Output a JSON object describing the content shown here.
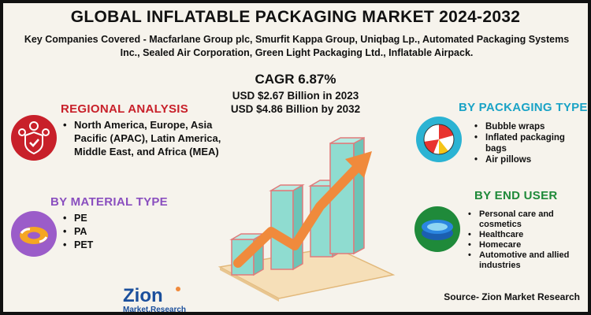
{
  "title": "GLOBAL INFLATABLE PACKAGING MARKET 2024-2032",
  "companies": "Key Companies Covered - Macfarlane Group plc, Smurfit Kappa Group, Uniqbag Lp., Automated Packaging Systems Inc., Sealed Air Corporation, Green Light Packaging Ltd., Inflatable Airpack.",
  "cagr": "CAGR 6.87%",
  "market": {
    "value_2023": "USD $2.67 Billion in 2023",
    "value_2032": "USD $4.86 Billion  by 2032"
  },
  "regional": {
    "title": "REGIONAL ANALYSIS",
    "items": [
      "North America, Europe, Asia Pacific (APAC), Latin America, Middle East, and Africa (MEA)"
    ]
  },
  "material": {
    "title": "BY MATERIAL TYPE",
    "items": [
      "PE",
      "PA",
      "PET"
    ]
  },
  "packaging": {
    "title": "BY PACKAGING TYPE",
    "items": [
      "Bubble wraps",
      "Inflated packaging bags",
      "Air pillows"
    ]
  },
  "enduser": {
    "title": "BY END USER",
    "items": [
      "Personal care and cosmetics",
      "Healthcare",
      "Homecare",
      "Automotive and allied industries"
    ]
  },
  "logo": {
    "brand": "Zion",
    "sub": "Market.Research"
  },
  "source": "Source- Zion Market Research",
  "colors": {
    "red_accent": "#c8202a",
    "blue_accent": "#1aa3c6",
    "green_accent": "#1f8a3a",
    "purple_accent": "#8a4fbf",
    "bar_fill": "#7fd3c7",
    "arrow": "#f08a3c"
  },
  "icons": {
    "regional": "people-shield-icon",
    "material": "swim-ring-icon",
    "packaging": "beach-ball-icon",
    "enduser": "inflatable-pool-icon",
    "chart": "growth-bar-chart-icon"
  }
}
